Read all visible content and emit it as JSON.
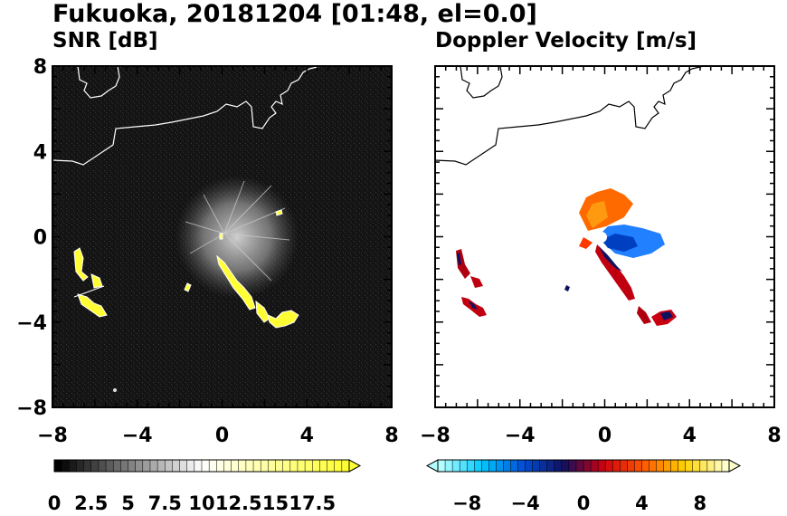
{
  "title": "Fukuoka, 20181204 [01:48, el=0.0]",
  "chart_data": [
    {
      "type": "heatmap",
      "title": "SNR [dB]",
      "xlim": [
        -8,
        8
      ],
      "ylim": [
        -8,
        8
      ],
      "xticks": [
        "−8",
        "−4",
        "0",
        "4",
        "8"
      ],
      "yticks": [
        "8",
        "4",
        "0",
        "−4",
        "−8"
      ],
      "colorbar": {
        "min": 0,
        "max": 20,
        "levels": 40,
        "extend": "max",
        "colors": [
          "#000000",
          "#ffffff",
          "#ffff33"
        ],
        "ticks": [
          "0",
          "2.5",
          "5",
          "7.5",
          "10",
          "12.5",
          "15",
          "17.5"
        ]
      }
    },
    {
      "type": "heatmap",
      "title": "Doppler Velocity [m/s]",
      "xlim": [
        -8,
        8
      ],
      "ylim": [
        -8,
        8
      ],
      "xticks": [
        "−8",
        "−4",
        "0",
        "4",
        "8"
      ],
      "colorbar": {
        "min": -10,
        "max": 10,
        "levels": 40,
        "extend": "both",
        "colors": [
          "#b3ffff",
          "#00c8ff",
          "#0050d8",
          "#101060",
          "#d00010",
          "#ff5a00",
          "#ffd200",
          "#ffffcc"
        ],
        "ticks": [
          "−8",
          "−4",
          "0",
          "4",
          "8"
        ]
      }
    }
  ]
}
